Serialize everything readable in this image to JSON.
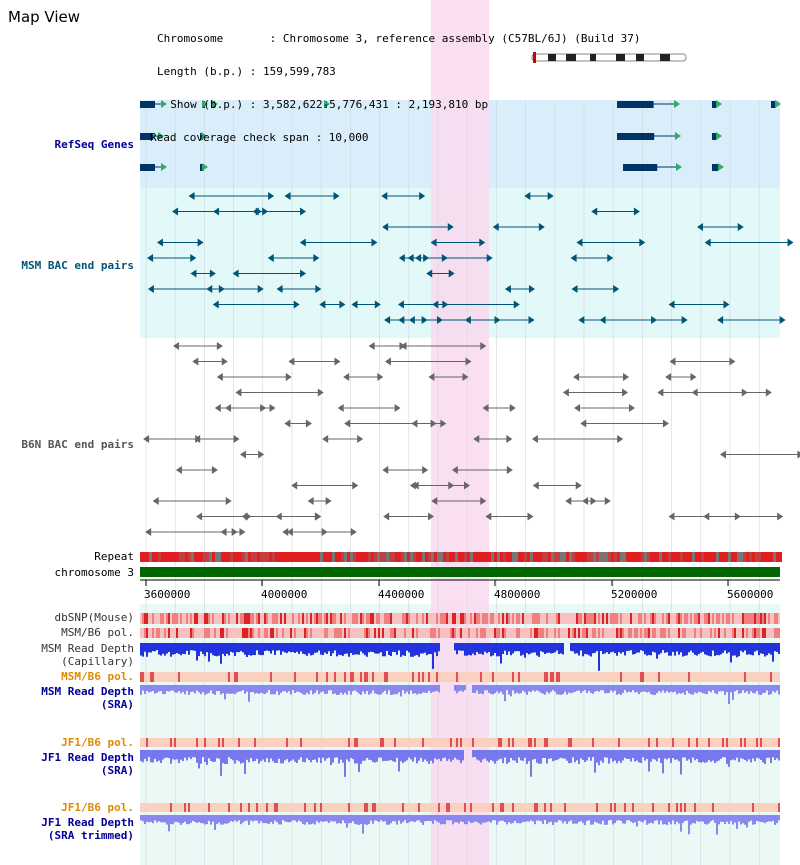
{
  "header": {
    "title": "Map View",
    "info_lines": [
      "Chromosome       : Chromosome 3, reference assembly (C57BL/6J) (Build 37)",
      "Length (b.p.) : 159,599,783",
      "  Show (b.p.) : 3,582,622-5,776,431 : 2,193,810 bp",
      "Read coverage check span : 10,000"
    ]
  },
  "tracks": {
    "refseq": {
      "label": "RefSeq Genes",
      "color": "#000099"
    },
    "msm_bac": {
      "label": "MSM BAC end pairs",
      "color": "#005577"
    },
    "b6n_bac": {
      "label": "B6N BAC end pairs",
      "color": "#555555"
    },
    "repeat": {
      "label": "Repeat"
    },
    "chromosome": {
      "label": "chromosome 3"
    },
    "dbsnp": {
      "label": "dbSNP(Mouse)"
    },
    "msm_b6_pol_1": {
      "label": "MSM/B6 pol."
    },
    "msm_depth_cap": {
      "label": "MSM Read Depth",
      "label2": "(Capillary)"
    },
    "msm_b6_pol_2": {
      "label": "MSM/B6 pol.",
      "color": "#e08a00"
    },
    "msm_depth_sra": {
      "label": "MSM Read Depth",
      "label2": "(SRA)",
      "color": "#000099"
    },
    "jf1_b6_pol_1": {
      "label": "JF1/B6 pol.",
      "color": "#e08a00"
    },
    "jf1_depth_sra": {
      "label": "JF1 Read Depth",
      "label2": "(SRA)",
      "color": "#000099"
    },
    "jf1_b6_pol_2": {
      "label": "JF1/B6 pol.",
      "color": "#e08a00"
    },
    "jf1_depth_trim": {
      "label": "JF1 Read Depth",
      "label2": "(SRA trimmed)",
      "color": "#000099"
    }
  },
  "axis": {
    "ticks": [
      "3600000",
      "4000000",
      "4400000",
      "4800000",
      "5200000",
      "5600000"
    ]
  },
  "colors": {
    "highlight": "#f9d9f0",
    "refseq_bg": "#d9eefa",
    "msm_bg": "#e3f8f8",
    "lower_bg": "#eaf9f5",
    "chromosome_bar": "#006600"
  }
}
